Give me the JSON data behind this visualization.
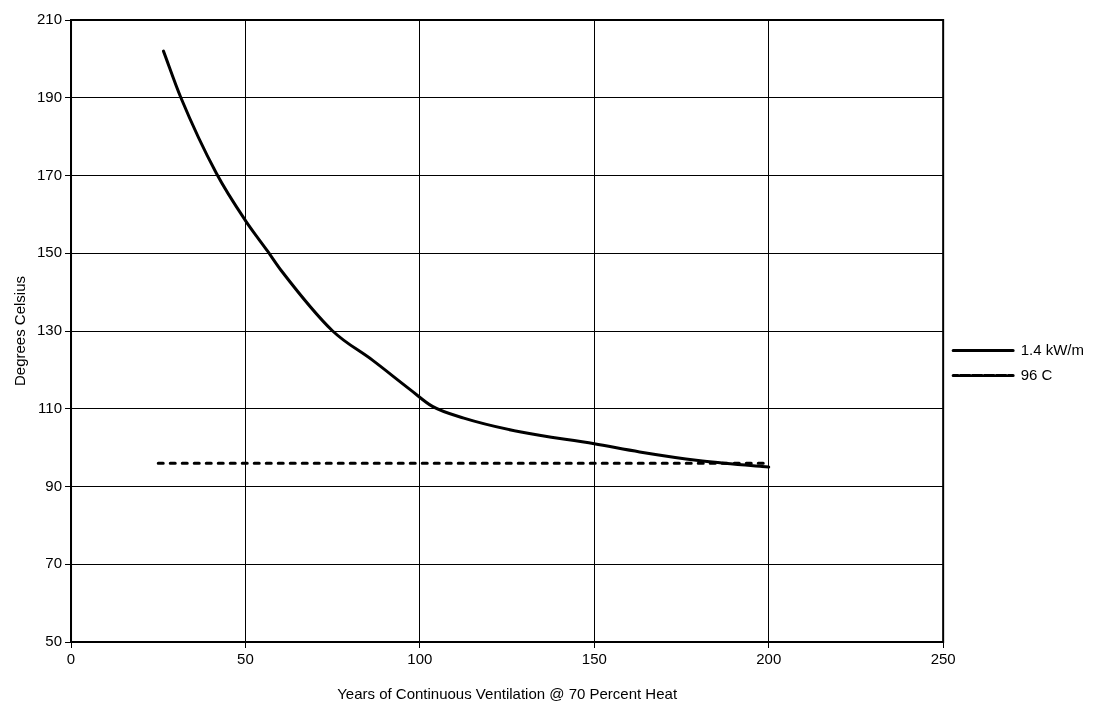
{
  "chart_data": {
    "type": "line",
    "xlabel": "Years of Continuous Ventilation @ 70 Percent Heat",
    "ylabel": "Degrees Celsius",
    "xlim": [
      0,
      250
    ],
    "xticks": [
      0,
      50,
      100,
      150,
      200,
      250
    ],
    "ylim": [
      50,
      210
    ],
    "yticks": [
      50,
      70,
      90,
      110,
      130,
      150,
      170,
      190,
      210
    ],
    "grid": true,
    "legend": "right",
    "marker": "none",
    "series": [
      {
        "name": "1.4 kW/m",
        "color": "#000000",
        "line_style": "solid",
        "x": [
          26.5,
          31.5,
          41.7,
          50,
          56.3,
          60.3,
          75,
          86.4,
          97.4,
          103.6,
          112.6,
          129,
          150,
          163,
          179.8,
          200
        ],
        "values": [
          202,
          190,
          170.5,
          158.4,
          150.6,
          145.5,
          130,
          122.5,
          114.8,
          110.6,
          107.6,
          104,
          101,
          98.9,
          96.7,
          95
        ]
      },
      {
        "name": "96 C",
        "color": "#000000",
        "line_style": "dotted",
        "x": [
          25,
          200
        ],
        "values": [
          96,
          96
        ]
      }
    ]
  }
}
